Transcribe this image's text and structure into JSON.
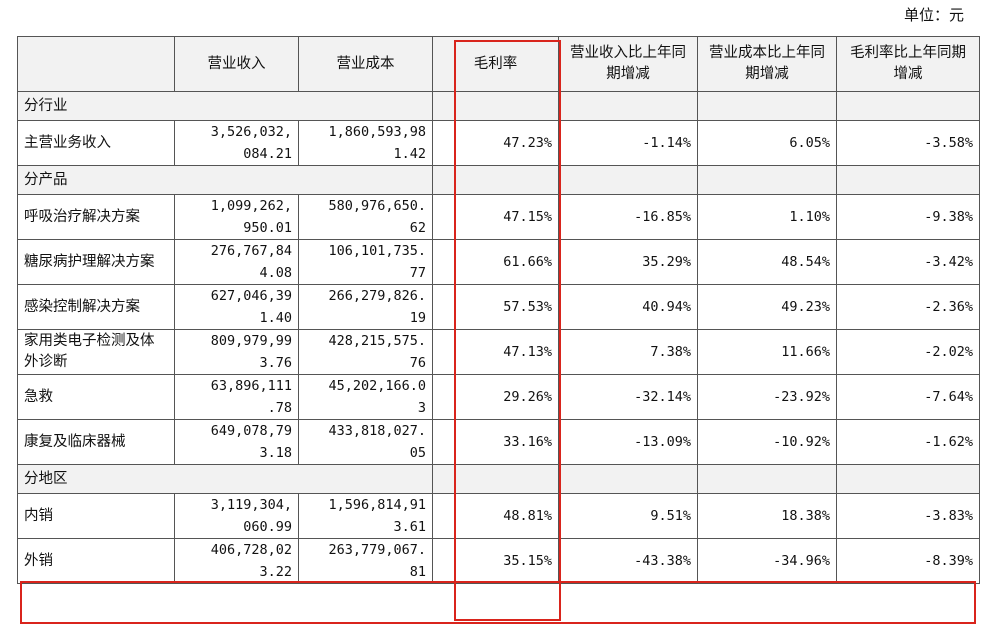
{
  "unit": "单位：元",
  "headers": [
    "",
    "营业收入",
    "营业成本",
    "毛利率",
    "营业收入比上年同期增减",
    "营业成本比上年同期增减",
    "毛利率比上年同期增减"
  ],
  "sections": {
    "industry": "分行业",
    "product": "分产品",
    "region": "分地区"
  },
  "rows": [
    {
      "name": "主营业务收入",
      "revenue_1": "3,526,032,",
      "revenue_2": "084.21",
      "cost_1": "1,860,593,98",
      "cost_2": "1.42",
      "margin": "47.23%",
      "rev_chg": "-1.14%",
      "cost_chg": "6.05%",
      "margin_chg": "-3.58%"
    },
    {
      "name": "呼吸治疗解决方案",
      "revenue_1": "1,099,262,",
      "revenue_2": "950.01",
      "cost_1": "580,976,650.",
      "cost_2": "62",
      "margin": "47.15%",
      "rev_chg": "-16.85%",
      "cost_chg": "1.10%",
      "margin_chg": "-9.38%"
    },
    {
      "name": "糖尿病护理解决方案",
      "revenue_1": "276,767,84",
      "revenue_2": "4.08",
      "cost_1": "106,101,735.",
      "cost_2": "77",
      "margin": "61.66%",
      "rev_chg": "35.29%",
      "cost_chg": "48.54%",
      "margin_chg": "-3.42%"
    },
    {
      "name": "感染控制解决方案",
      "revenue_1": "627,046,39",
      "revenue_2": "1.40",
      "cost_1": "266,279,826.",
      "cost_2": "19",
      "margin": "57.53%",
      "rev_chg": "40.94%",
      "cost_chg": "49.23%",
      "margin_chg": "-2.36%"
    },
    {
      "name": "家用类电子检测及体外诊断",
      "revenue_1": "809,979,99",
      "revenue_2": "3.76",
      "cost_1": "428,215,575.",
      "cost_2": "76",
      "margin": "47.13%",
      "rev_chg": "7.38%",
      "cost_chg": "11.66%",
      "margin_chg": "-2.02%"
    },
    {
      "name": "急救",
      "revenue_1": "63,896,111",
      "revenue_2": ".78",
      "cost_1": "45,202,166.0",
      "cost_2": "3",
      "margin": "29.26%",
      "rev_chg": "-32.14%",
      "cost_chg": "-23.92%",
      "margin_chg": "-7.64%"
    },
    {
      "name": "康复及临床器械",
      "revenue_1": "649,078,79",
      "revenue_2": "3.18",
      "cost_1": "433,818,027.",
      "cost_2": "05",
      "margin": "33.16%",
      "rev_chg": "-13.09%",
      "cost_chg": "-10.92%",
      "margin_chg": "-1.62%"
    },
    {
      "name": "内销",
      "revenue_1": "3,119,304,",
      "revenue_2": "060.99",
      "cost_1": "1,596,814,91",
      "cost_2": "3.61",
      "margin": "48.81%",
      "rev_chg": "9.51%",
      "cost_chg": "18.38%",
      "margin_chg": "-3.83%"
    },
    {
      "name": "外销",
      "revenue_1": "406,728,02",
      "revenue_2": "3.22",
      "cost_1": "263,779,067.",
      "cost_2": "81",
      "margin": "35.15%",
      "rev_chg": "-43.38%",
      "cost_chg": "-34.96%",
      "margin_chg": "-8.39%"
    }
  ],
  "highlight_color": "#d9241c"
}
